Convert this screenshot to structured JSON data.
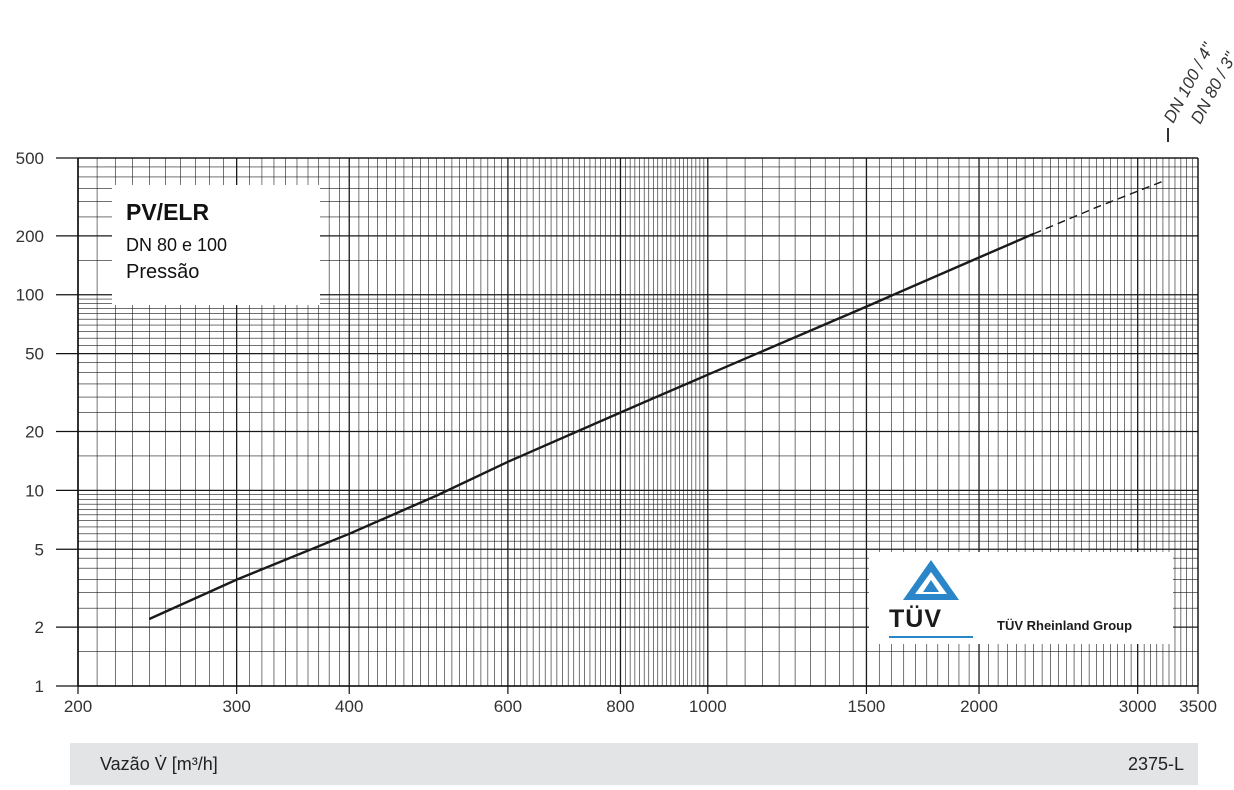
{
  "chart_data": {
    "type": "line",
    "title": "PV/ELR",
    "subtitle_lines": [
      "DN 80 e 100",
      "Pressão"
    ],
    "xlabel": "Vazão V̇ [m³/h]",
    "ylabel": "",
    "xscale": "log",
    "yscale": "log",
    "xlim": [
      200,
      3500
    ],
    "ylim": [
      1,
      500
    ],
    "grid": true,
    "x_ticks": [
      "200",
      "300",
      "400",
      "600",
      "800",
      "1000",
      "1500",
      "2000",
      "3000",
      "3500"
    ],
    "y_ticks": [
      "1",
      "2",
      "5",
      "10",
      "20",
      "50",
      "100",
      "200",
      "500"
    ],
    "series": [
      {
        "name": "DN 100 / 4\"",
        "style": "solid",
        "x": [
          240,
          300,
          400,
          500,
          600,
          800,
          1000,
          1500,
          2000,
          2300
        ],
        "y": [
          2.2,
          3.5,
          6,
          9.4,
          14,
          25,
          39,
          87,
          155,
          205
        ]
      },
      {
        "name": "DN 80 / 3\"",
        "style": "dashed",
        "x": [
          2300,
          2700,
          3200
        ],
        "y": [
          205,
          280,
          380
        ]
      }
    ],
    "annotations": [
      "DN 100 / 4\"",
      "DN 80 / 3\""
    ],
    "colors": {
      "line": "#1a1a1a",
      "grid": "#1a1a1a",
      "footer_bg": "#e3e4e6",
      "logo_blue": "#2a86c8"
    }
  },
  "title_box": {
    "title": "PV/ELR",
    "line1": "DN 80 e 100",
    "line2": "Pressão"
  },
  "logo": {
    "brand": "TÜV",
    "group": "TÜV Rheinland Group"
  },
  "footer": {
    "xlabel": "Vazão V̇ [m³/h]",
    "code": "2375-L"
  }
}
